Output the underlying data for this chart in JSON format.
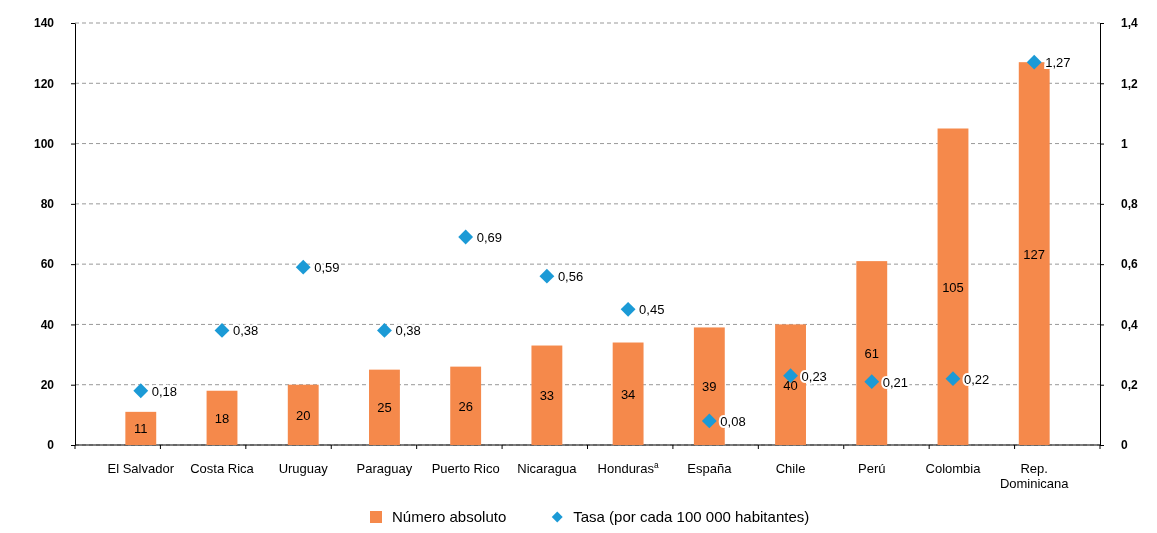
{
  "chart_data": {
    "type": "bar",
    "categories": [
      "El Salvador",
      "Costa Rica",
      "Uruguay",
      "Paraguay",
      "Puerto Rico",
      "Nicaragua",
      "Honduras$^{a}$",
      "España",
      "Chile",
      "Perú",
      "Colombia",
      "Rep. Dominicana"
    ],
    "series": [
      {
        "name": "Número absoluto",
        "color": "#f5894b",
        "values": [
          11,
          18,
          20,
          25,
          26,
          33,
          34,
          39,
          40,
          61,
          105,
          127
        ],
        "value_labels": [
          "11",
          "18",
          "20",
          "25",
          "26",
          "33",
          "34",
          "39",
          "40",
          "61",
          "105",
          "127"
        ]
      },
      {
        "name": "Tasa (por cada 100 000 habitantes)",
        "type": "scatter",
        "axis": "y2",
        "color": "#1b9ad6",
        "values": [
          0.18,
          0.38,
          0.59,
          0.38,
          0.69,
          0.56,
          0.45,
          0.08,
          0.23,
          0.21,
          0.22,
          1.27
        ],
        "value_labels": [
          "0,18",
          "0,38",
          "0,59",
          "0,38",
          "0,69",
          "0,56",
          "0,45",
          "0,08",
          "0,23",
          "0,21",
          "0,22",
          "1,27"
        ]
      }
    ],
    "ylim": [
      0,
      140
    ],
    "yticks": [
      0,
      20,
      40,
      60,
      80,
      100,
      120,
      140
    ],
    "y2lim": [
      0,
      1.4
    ],
    "y2ticks": [
      0,
      {
        "value": 0.2,
        "label": "0,2"
      },
      {
        "value": 0.4,
        "label": "0,4"
      },
      {
        "value": 0.6,
        "label": "0,6"
      },
      {
        "value": 0.8,
        "label": "0,8"
      },
      1,
      {
        "value": 1.2,
        "label": "1,2"
      },
      {
        "value": 1.4,
        "label": "1,4"
      }
    ],
    "grid": "y",
    "legend": "bottom",
    "marker": "diamond"
  }
}
